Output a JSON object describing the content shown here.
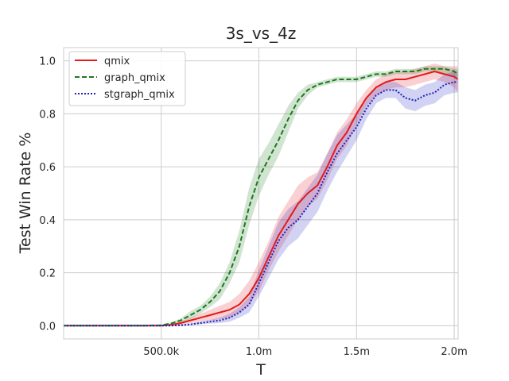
{
  "chart_data": {
    "type": "line",
    "title": "3s_vs_4z",
    "xlabel": "T",
    "ylabel": "Test Win Rate %",
    "xlim": [
      0,
      2020000
    ],
    "ylim": [
      -0.05,
      1.05
    ],
    "x_ticks": [
      {
        "value": 500000,
        "label": "500.0k"
      },
      {
        "value": 1000000,
        "label": "1.0m"
      },
      {
        "value": 1500000,
        "label": "1.5m"
      },
      {
        "value": 2000000,
        "label": "2.0m"
      }
    ],
    "y_ticks": [
      {
        "value": 0.0,
        "label": "0.0"
      },
      {
        "value": 0.2,
        "label": "0.2"
      },
      {
        "value": 0.4,
        "label": "0.4"
      },
      {
        "value": 0.6,
        "label": "0.6"
      },
      {
        "value": 0.8,
        "label": "0.8"
      },
      {
        "value": 1.0,
        "label": "1.0"
      }
    ],
    "grid": true,
    "legend_position": "top-left",
    "x": [
      0,
      100000,
      200000,
      300000,
      400000,
      500000,
      550000,
      600000,
      650000,
      700000,
      750000,
      800000,
      850000,
      900000,
      950000,
      1000000,
      1050000,
      1100000,
      1150000,
      1200000,
      1250000,
      1300000,
      1350000,
      1400000,
      1450000,
      1500000,
      1550000,
      1600000,
      1650000,
      1700000,
      1750000,
      1800000,
      1850000,
      1900000,
      1950000,
      2000000,
      2020000
    ],
    "series": [
      {
        "name": "qmix",
        "color": "#e41a1c",
        "dash": "solid",
        "values": [
          0,
          0,
          0,
          0,
          0,
          0,
          0.003,
          0.01,
          0.02,
          0.03,
          0.04,
          0.05,
          0.06,
          0.08,
          0.12,
          0.18,
          0.26,
          0.34,
          0.4,
          0.46,
          0.5,
          0.53,
          0.6,
          0.68,
          0.73,
          0.8,
          0.86,
          0.9,
          0.92,
          0.93,
          0.93,
          0.94,
          0.95,
          0.96,
          0.95,
          0.94,
          0.93
        ],
        "lower": [
          0,
          0,
          0,
          0,
          0,
          0,
          0,
          0.004,
          0.01,
          0.015,
          0.02,
          0.025,
          0.03,
          0.05,
          0.08,
          0.13,
          0.21,
          0.28,
          0.34,
          0.4,
          0.45,
          0.48,
          0.55,
          0.63,
          0.68,
          0.76,
          0.83,
          0.87,
          0.89,
          0.9,
          0.9,
          0.91,
          0.92,
          0.93,
          0.92,
          0.9,
          0.88
        ],
        "upper": [
          0,
          0,
          0,
          0,
          0,
          0,
          0.006,
          0.016,
          0.03,
          0.045,
          0.06,
          0.075,
          0.09,
          0.12,
          0.17,
          0.24,
          0.32,
          0.41,
          0.47,
          0.53,
          0.56,
          0.58,
          0.65,
          0.73,
          0.78,
          0.84,
          0.89,
          0.93,
          0.95,
          0.96,
          0.96,
          0.97,
          0.98,
          0.99,
          0.98,
          0.98,
          0.98
        ]
      },
      {
        "name": "graph_qmix",
        "color": "#1a7a1a",
        "dash": "6,3",
        "values": [
          0,
          0,
          0,
          0,
          0,
          0.002,
          0.008,
          0.02,
          0.04,
          0.06,
          0.09,
          0.13,
          0.2,
          0.3,
          0.45,
          0.56,
          0.63,
          0.7,
          0.78,
          0.85,
          0.89,
          0.91,
          0.92,
          0.93,
          0.93,
          0.93,
          0.94,
          0.95,
          0.95,
          0.96,
          0.96,
          0.96,
          0.97,
          0.97,
          0.97,
          0.96,
          0.95
        ],
        "lower": [
          0,
          0,
          0,
          0,
          0,
          0,
          0.004,
          0.012,
          0.025,
          0.045,
          0.07,
          0.1,
          0.16,
          0.24,
          0.38,
          0.49,
          0.57,
          0.64,
          0.73,
          0.82,
          0.87,
          0.9,
          0.91,
          0.92,
          0.92,
          0.92,
          0.93,
          0.94,
          0.94,
          0.95,
          0.95,
          0.95,
          0.96,
          0.96,
          0.95,
          0.94,
          0.93
        ],
        "upper": [
          0,
          0,
          0,
          0,
          0,
          0.004,
          0.012,
          0.028,
          0.055,
          0.075,
          0.11,
          0.16,
          0.24,
          0.36,
          0.52,
          0.63,
          0.69,
          0.76,
          0.83,
          0.88,
          0.91,
          0.92,
          0.93,
          0.94,
          0.94,
          0.94,
          0.95,
          0.96,
          0.96,
          0.97,
          0.97,
          0.97,
          0.98,
          0.98,
          0.98,
          0.97,
          0.97
        ]
      },
      {
        "name": "stgraph_qmix",
        "color": "#1f1fbf",
        "dash": "2,2",
        "values": [
          0,
          0,
          0,
          0,
          0,
          0,
          0,
          0.002,
          0.005,
          0.01,
          0.015,
          0.02,
          0.03,
          0.05,
          0.08,
          0.16,
          0.24,
          0.32,
          0.37,
          0.4,
          0.45,
          0.5,
          0.58,
          0.65,
          0.7,
          0.75,
          0.82,
          0.87,
          0.89,
          0.89,
          0.86,
          0.85,
          0.87,
          0.88,
          0.91,
          0.92,
          0.92
        ],
        "lower": [
          0,
          0,
          0,
          0,
          0,
          0,
          0,
          0,
          0.002,
          0.005,
          0.008,
          0.01,
          0.015,
          0.03,
          0.05,
          0.11,
          0.18,
          0.25,
          0.3,
          0.33,
          0.38,
          0.43,
          0.51,
          0.58,
          0.64,
          0.7,
          0.78,
          0.84,
          0.86,
          0.86,
          0.82,
          0.81,
          0.83,
          0.84,
          0.87,
          0.88,
          0.88
        ],
        "upper": [
          0,
          0,
          0,
          0,
          0,
          0,
          0,
          0.004,
          0.008,
          0.015,
          0.022,
          0.03,
          0.045,
          0.07,
          0.11,
          0.21,
          0.3,
          0.39,
          0.44,
          0.47,
          0.52,
          0.57,
          0.65,
          0.72,
          0.76,
          0.8,
          0.86,
          0.9,
          0.92,
          0.92,
          0.9,
          0.89,
          0.91,
          0.92,
          0.95,
          0.96,
          0.96
        ]
      }
    ]
  }
}
